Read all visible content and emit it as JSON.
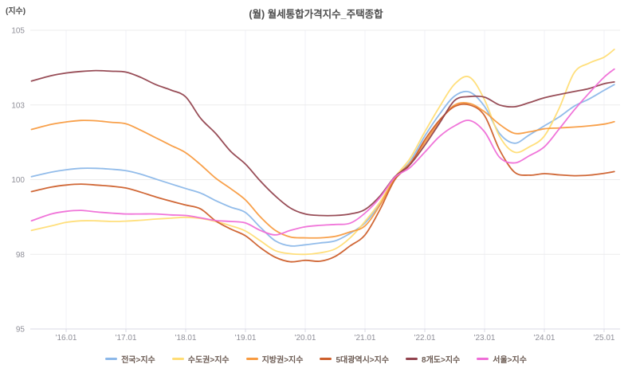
{
  "chart_data": {
    "type": "line",
    "title": "(월) 월세통합가격지수_주택종합",
    "ylabel": "(지수)",
    "xlabel": "",
    "ylim": [
      95,
      105
    ],
    "grid": true,
    "legend_position": "bottom",
    "y_ticks": [
      {
        "value": 105,
        "label": "105"
      },
      {
        "value": 102.5,
        "label": "103"
      },
      {
        "value": 100,
        "label": "100"
      },
      {
        "value": 97.5,
        "label": "98"
      },
      {
        "value": 95,
        "label": "95"
      }
    ],
    "x_ticks": [
      {
        "value": 2016,
        "label": "'16.01"
      },
      {
        "value": 2017,
        "label": "'17.01"
      },
      {
        "value": 2018,
        "label": "'18.01"
      },
      {
        "value": 2019,
        "label": "'19.01"
      },
      {
        "value": 2020,
        "label": "'20.01"
      },
      {
        "value": 2021,
        "label": "'21.01"
      },
      {
        "value": 2022,
        "label": "'22.01"
      },
      {
        "value": 2023,
        "label": "'23.01"
      },
      {
        "value": 2024,
        "label": "'24.01"
      },
      {
        "value": 2025,
        "label": "'25.01"
      }
    ],
    "x": [
      2015.42,
      2015.75,
      2016,
      2016.25,
      2016.5,
      2016.75,
      2017,
      2017.25,
      2017.5,
      2017.75,
      2018,
      2018.25,
      2018.5,
      2018.75,
      2019,
      2019.25,
      2019.5,
      2019.75,
      2020,
      2020.25,
      2020.5,
      2020.75,
      2021,
      2021.25,
      2021.5,
      2021.75,
      2022,
      2022.25,
      2022.5,
      2022.75,
      2023,
      2023.25,
      2023.5,
      2023.75,
      2024,
      2024.25,
      2024.5,
      2024.75,
      2025,
      2025.17
    ],
    "series": [
      {
        "name": "전국>지수",
        "color": "#8cb8e9",
        "values": [
          100.1,
          100.25,
          100.33,
          100.38,
          100.38,
          100.35,
          100.3,
          100.18,
          100.02,
          99.86,
          99.7,
          99.55,
          99.3,
          99.08,
          98.9,
          98.4,
          97.95,
          97.78,
          97.82,
          97.88,
          97.95,
          98.2,
          98.55,
          99.2,
          100.05,
          100.6,
          101.46,
          102.2,
          102.8,
          102.93,
          102.45,
          101.55,
          101.22,
          101.5,
          101.8,
          102.1,
          102.46,
          102.7,
          102.99,
          103.18
        ]
      },
      {
        "name": "수도권>지수",
        "color": "#ffdd75",
        "values": [
          98.3,
          98.45,
          98.57,
          98.62,
          98.62,
          98.6,
          98.61,
          98.64,
          98.68,
          98.71,
          98.74,
          98.7,
          98.6,
          98.46,
          98.28,
          97.95,
          97.62,
          97.52,
          97.5,
          97.55,
          97.68,
          98.05,
          98.6,
          99.25,
          100.08,
          100.7,
          101.6,
          102.45,
          103.2,
          103.43,
          102.67,
          101.45,
          100.92,
          101.1,
          101.46,
          102.4,
          103.58,
          103.9,
          104.1,
          104.36
        ]
      },
      {
        "name": "지방권>지수",
        "color": "#f89b40",
        "values": [
          101.68,
          101.85,
          101.93,
          101.98,
          101.97,
          101.92,
          101.87,
          101.65,
          101.4,
          101.15,
          100.9,
          100.5,
          100.05,
          99.7,
          99.32,
          98.75,
          98.3,
          98.08,
          98.05,
          98.05,
          98.1,
          98.25,
          98.45,
          99.15,
          100.05,
          100.55,
          101.24,
          101.95,
          102.5,
          102.55,
          102.27,
          101.85,
          101.55,
          101.6,
          101.7,
          101.73,
          101.76,
          101.8,
          101.86,
          101.94
        ]
      },
      {
        "name": "5대광역시>지수",
        "color": "#cd5f2b",
        "values": [
          99.6,
          99.75,
          99.82,
          99.85,
          99.82,
          99.78,
          99.72,
          99.58,
          99.42,
          99.28,
          99.15,
          99.02,
          98.62,
          98.35,
          98.12,
          97.72,
          97.4,
          97.25,
          97.3,
          97.27,
          97.43,
          97.78,
          98.15,
          99.0,
          100.0,
          100.5,
          101.33,
          102.0,
          102.45,
          102.5,
          102.14,
          101.0,
          100.25,
          100.15,
          100.2,
          100.16,
          100.13,
          100.15,
          100.21,
          100.27
        ]
      },
      {
        "name": "8개도>지수",
        "color": "#92434e",
        "values": [
          103.3,
          103.48,
          103.57,
          103.62,
          103.65,
          103.63,
          103.6,
          103.42,
          103.18,
          103.0,
          102.77,
          102.05,
          101.55,
          100.95,
          100.52,
          99.95,
          99.45,
          99.05,
          98.85,
          98.8,
          98.8,
          98.85,
          99.0,
          99.45,
          100.1,
          100.5,
          101.15,
          101.9,
          102.65,
          102.78,
          102.76,
          102.5,
          102.44,
          102.58,
          102.74,
          102.85,
          102.95,
          103.05,
          103.21,
          103.27
        ]
      },
      {
        "name": "서울>지수",
        "color": "#ef6ed7",
        "values": [
          98.62,
          98.85,
          98.94,
          98.97,
          98.92,
          98.88,
          98.85,
          98.85,
          98.85,
          98.82,
          98.8,
          98.72,
          98.63,
          98.6,
          98.55,
          98.3,
          98.15,
          98.3,
          98.42,
          98.47,
          98.5,
          98.54,
          98.88,
          99.4,
          100.08,
          100.4,
          100.92,
          101.45,
          101.8,
          101.98,
          101.6,
          100.75,
          100.56,
          100.8,
          101.1,
          101.7,
          102.33,
          102.9,
          103.43,
          103.7
        ]
      }
    ]
  },
  "style": {
    "h_grid_color": "#ececec",
    "v_grid_color": "#f1f1f7",
    "axis_line_color": "#d9d9e4",
    "tick_label_color": "#8f8f98"
  }
}
